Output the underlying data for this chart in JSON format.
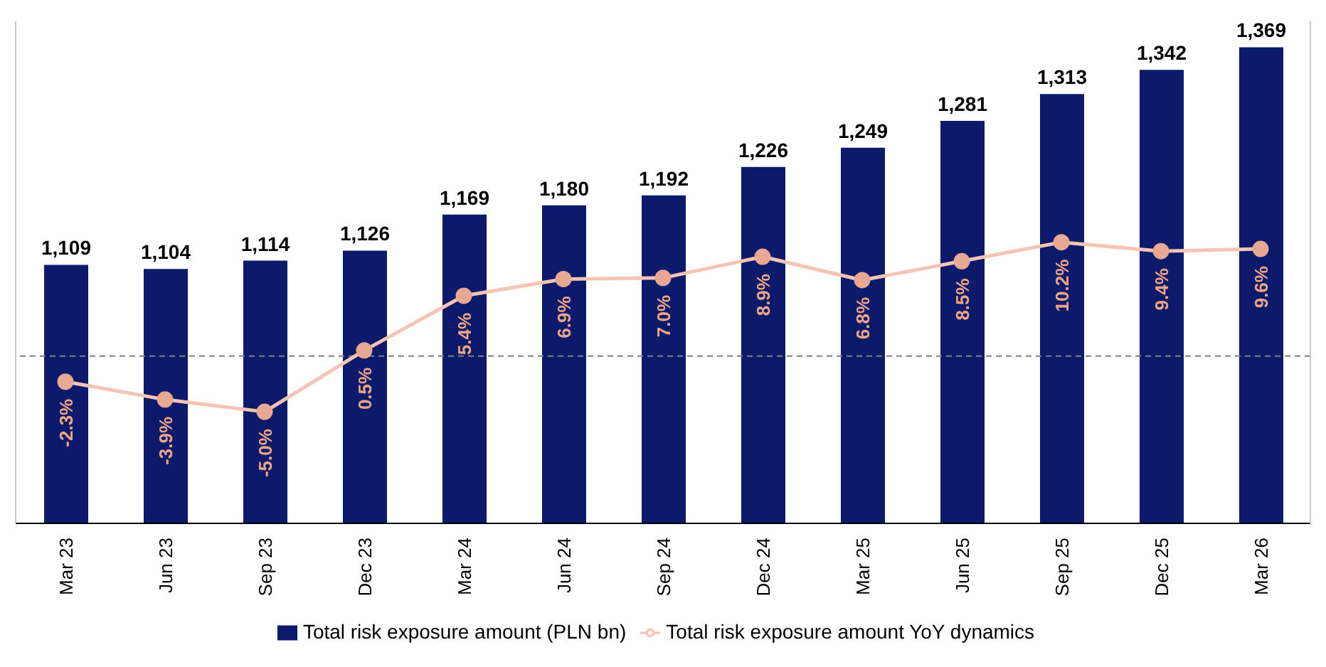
{
  "chart_data": {
    "type": "bar",
    "categories": [
      "Mar 23",
      "Jun 23",
      "Sep 23",
      "Dec 23",
      "Mar 24",
      "Jun 24",
      "Sep 24",
      "Dec 24",
      "Mar 25",
      "Jun 25",
      "Sep 25",
      "Dec 25",
      "Mar 26"
    ],
    "series": [
      {
        "name": "Total risk exposure amount (PLN bn)",
        "color": "#0c1a6b",
        "values": [
          1109,
          1104,
          1114,
          1126,
          1169,
          1180,
          1192,
          1226,
          1249,
          1281,
          1313,
          1342,
          1369
        ],
        "value_labels": [
          "1,109",
          "1,104",
          "1,114",
          "1,126",
          "1,169",
          "1,180",
          "1,192",
          "1,226",
          "1,249",
          "1,281",
          "1,313",
          "1,342",
          "1,369"
        ]
      },
      {
        "name": "Total risk exposure amount YoY dynamics",
        "type": "line",
        "axis": "y2",
        "color": "#f4c4b4",
        "values": [
          -2.3,
          -3.9,
          -5.0,
          0.5,
          5.4,
          6.9,
          7.0,
          8.9,
          6.8,
          8.5,
          10.2,
          9.4,
          9.6
        ],
        "value_labels": [
          "-2.3%",
          "-3.9%",
          "-5.0%",
          "0.5%",
          "5.4%",
          "6.9%",
          "7.0%",
          "8.9%",
          "6.8%",
          "8.5%",
          "10.2%",
          "9.4%",
          "9.6%"
        ]
      }
    ],
    "ref_lines": [
      {
        "axis": "y2",
        "value": 0,
        "color": "#808080",
        "line_style": "dashed"
      }
    ],
    "ylim": [
      800,
      1400
    ],
    "y2lim": [
      -15,
      30
    ],
    "tick_labels": "x",
    "legend": "bottom",
    "marker": "circle"
  }
}
